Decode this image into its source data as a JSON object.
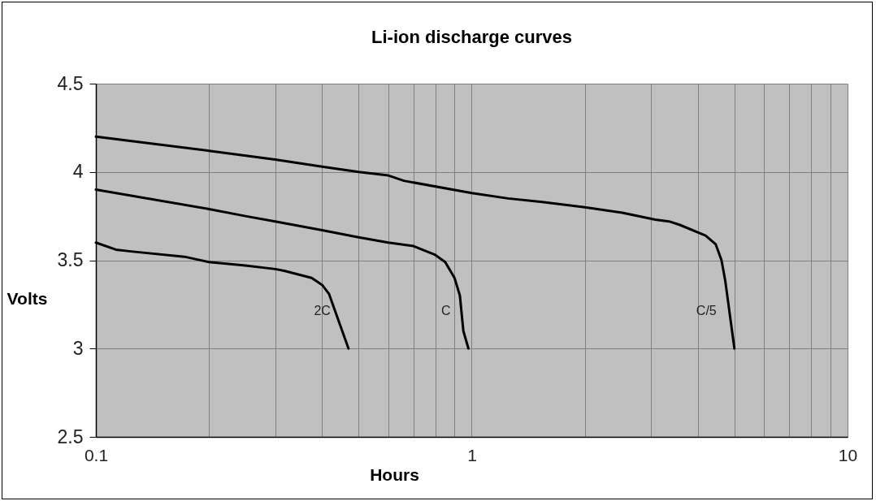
{
  "chart_data": {
    "type": "line",
    "title": "Li-ion discharge curves",
    "xlabel": "Hours",
    "ylabel": "Volts",
    "log": "x",
    "grid": true,
    "marker": "none",
    "line_style": "solid",
    "legend": false,
    "xlim": [
      0.1,
      10
    ],
    "ylim": [
      2.5,
      4.5
    ],
    "xticks": [
      0.1,
      {
        "value": 0.2,
        "label": null
      },
      {
        "value": 0.3,
        "label": null
      },
      {
        "value": 0.4,
        "label": null
      },
      {
        "value": 0.5,
        "label": null
      },
      {
        "value": 0.6,
        "label": null
      },
      {
        "value": 0.7,
        "label": null
      },
      {
        "value": 0.8,
        "label": null
      },
      {
        "value": 0.9,
        "label": null
      },
      1,
      {
        "value": 2,
        "label": null
      },
      {
        "value": 3,
        "label": null
      },
      {
        "value": 4,
        "label": null
      },
      {
        "value": 5,
        "label": null
      },
      {
        "value": 6,
        "label": null
      },
      {
        "value": 7,
        "label": null
      },
      {
        "value": 8,
        "label": null
      },
      {
        "value": 9,
        "label": null
      },
      10
    ],
    "yticks": [
      2.5,
      3,
      3.5,
      4,
      4.5
    ],
    "series": [
      {
        "name": "C/5",
        "color": "#000000",
        "x": [
          0.1,
          0.2,
          0.3,
          0.4,
          0.5,
          0.6,
          0.66,
          1,
          1.25,
          1.54,
          2,
          2.5,
          3.08,
          3.35,
          3.58,
          4.19,
          4.46,
          4.62,
          4.73,
          5
        ],
        "values": [
          4.2,
          4.12,
          4.07,
          4.03,
          4.0,
          3.98,
          3.95,
          3.88,
          3.85,
          3.83,
          3.8,
          3.77,
          3.73,
          3.72,
          3.7,
          3.64,
          3.59,
          3.5,
          3.38,
          3.0
        ]
      },
      {
        "name": "C",
        "color": "#000000",
        "x": [
          0.1,
          0.2,
          0.25,
          0.3,
          0.4,
          0.5,
          0.6,
          0.7,
          0.8,
          0.85,
          0.9,
          0.93,
          0.95,
          0.98
        ],
        "values": [
          3.9,
          3.79,
          3.75,
          3.72,
          3.67,
          3.63,
          3.6,
          3.58,
          3.53,
          3.49,
          3.4,
          3.3,
          3.1,
          3.0
        ]
      },
      {
        "name": "2C",
        "color": "#000000",
        "x": [
          0.1,
          0.113,
          0.124,
          0.172,
          0.2,
          0.25,
          0.3,
          0.317,
          0.375,
          0.4,
          0.417,
          0.47
        ],
        "values": [
          3.6,
          3.56,
          3.55,
          3.52,
          3.49,
          3.47,
          3.45,
          3.44,
          3.4,
          3.36,
          3.31,
          3.0
        ]
      }
    ]
  }
}
